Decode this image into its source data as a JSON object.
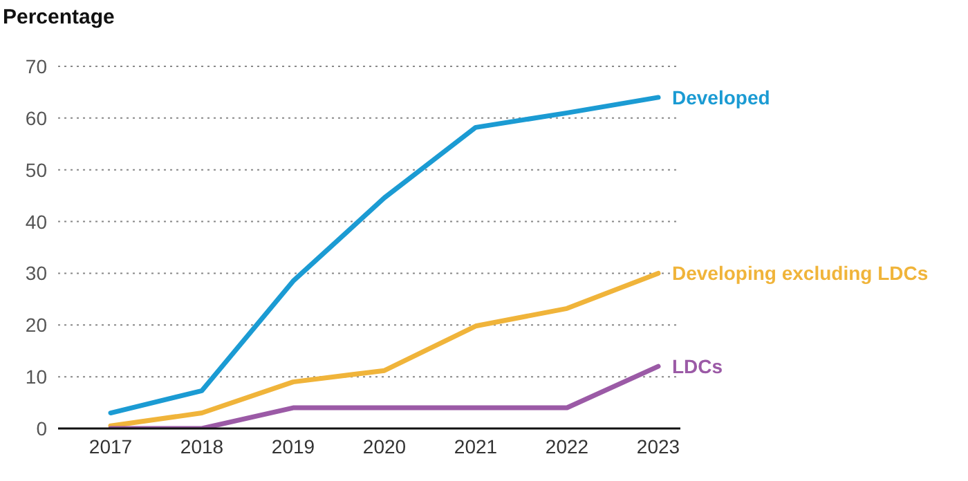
{
  "chart_data": {
    "type": "line",
    "ylabel": "Percentage",
    "categories": [
      "2017",
      "2018",
      "2019",
      "2020",
      "2021",
      "2022",
      "2023"
    ],
    "series": [
      {
        "name": "Developed",
        "color": "#1b9bd3",
        "values": [
          3,
          7.3,
          28.5,
          44.6,
          58.2,
          61,
          64
        ]
      },
      {
        "name": "Developing excluding LDCs",
        "color": "#f0b43a",
        "values": [
          0.5,
          3,
          9,
          11.2,
          19.8,
          23.2,
          30
        ]
      },
      {
        "name": "LDCs",
        "color": "#9b5aa6",
        "values": [
          0,
          0,
          4,
          4,
          4,
          4,
          12
        ]
      }
    ],
    "ylim": [
      0,
      70
    ],
    "yticks": [
      0,
      10,
      20,
      30,
      40,
      50,
      60,
      70
    ],
    "grid": "y",
    "legend": false,
    "marker": "none",
    "line_style": "solid"
  }
}
